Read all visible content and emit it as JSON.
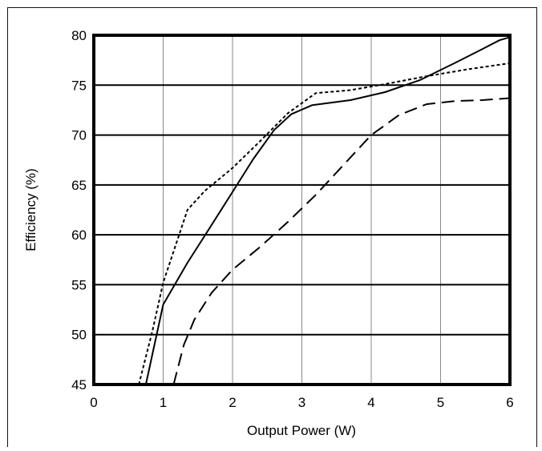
{
  "chart_data": {
    "type": "line",
    "xlabel": "Output Power (W)",
    "ylabel": "Efficiency (%)",
    "xlim": [
      0,
      6
    ],
    "ylim": [
      45,
      80
    ],
    "x_ticks": [
      "0",
      "1",
      "2",
      "3",
      "4",
      "5",
      "6"
    ],
    "y_ticks": [
      "45",
      "50",
      "55",
      "60",
      "65",
      "70",
      "75",
      "80"
    ],
    "grid": {
      "vertical": true,
      "horizontal": true
    },
    "series": [
      {
        "style": "solid",
        "color": "#000000",
        "points": [
          [
            0.75,
            45
          ],
          [
            1.0,
            53
          ],
          [
            1.35,
            57.2
          ],
          [
            1.7,
            61
          ],
          [
            2.0,
            64.3
          ],
          [
            2.3,
            67.6
          ],
          [
            2.6,
            70.5
          ],
          [
            2.85,
            72.1
          ],
          [
            3.15,
            73.0
          ],
          [
            3.7,
            73.5
          ],
          [
            4.2,
            74.3
          ],
          [
            4.7,
            75.5
          ],
          [
            5.2,
            77.2
          ],
          [
            5.6,
            78.6
          ],
          [
            5.85,
            79.5
          ],
          [
            6.0,
            79.8
          ]
        ]
      },
      {
        "style": "dotted",
        "color": "#000000",
        "points": [
          [
            0.65,
            45
          ],
          [
            0.85,
            50.5
          ],
          [
            1.0,
            55.2
          ],
          [
            1.35,
            62.5
          ],
          [
            1.6,
            64.4
          ],
          [
            2.0,
            66.7
          ],
          [
            2.4,
            69.4
          ],
          [
            2.8,
            72.2
          ],
          [
            3.2,
            74.2
          ],
          [
            3.7,
            74.5
          ],
          [
            4.2,
            75.1
          ],
          [
            4.8,
            75.9
          ],
          [
            5.4,
            76.6
          ],
          [
            6.0,
            77.2
          ]
        ]
      },
      {
        "style": "dashed",
        "color": "#000000",
        "points": [
          [
            1.15,
            45
          ],
          [
            1.3,
            49
          ],
          [
            1.45,
            51.5
          ],
          [
            1.7,
            54.2
          ],
          [
            2.0,
            56.5
          ],
          [
            2.4,
            58.8
          ],
          [
            2.8,
            61.3
          ],
          [
            3.2,
            64.0
          ],
          [
            3.6,
            67.0
          ],
          [
            4.0,
            70.0
          ],
          [
            4.4,
            72.0
          ],
          [
            4.8,
            73.1
          ],
          [
            5.2,
            73.4
          ],
          [
            5.6,
            73.5
          ],
          [
            6.0,
            73.7
          ]
        ]
      }
    ]
  }
}
